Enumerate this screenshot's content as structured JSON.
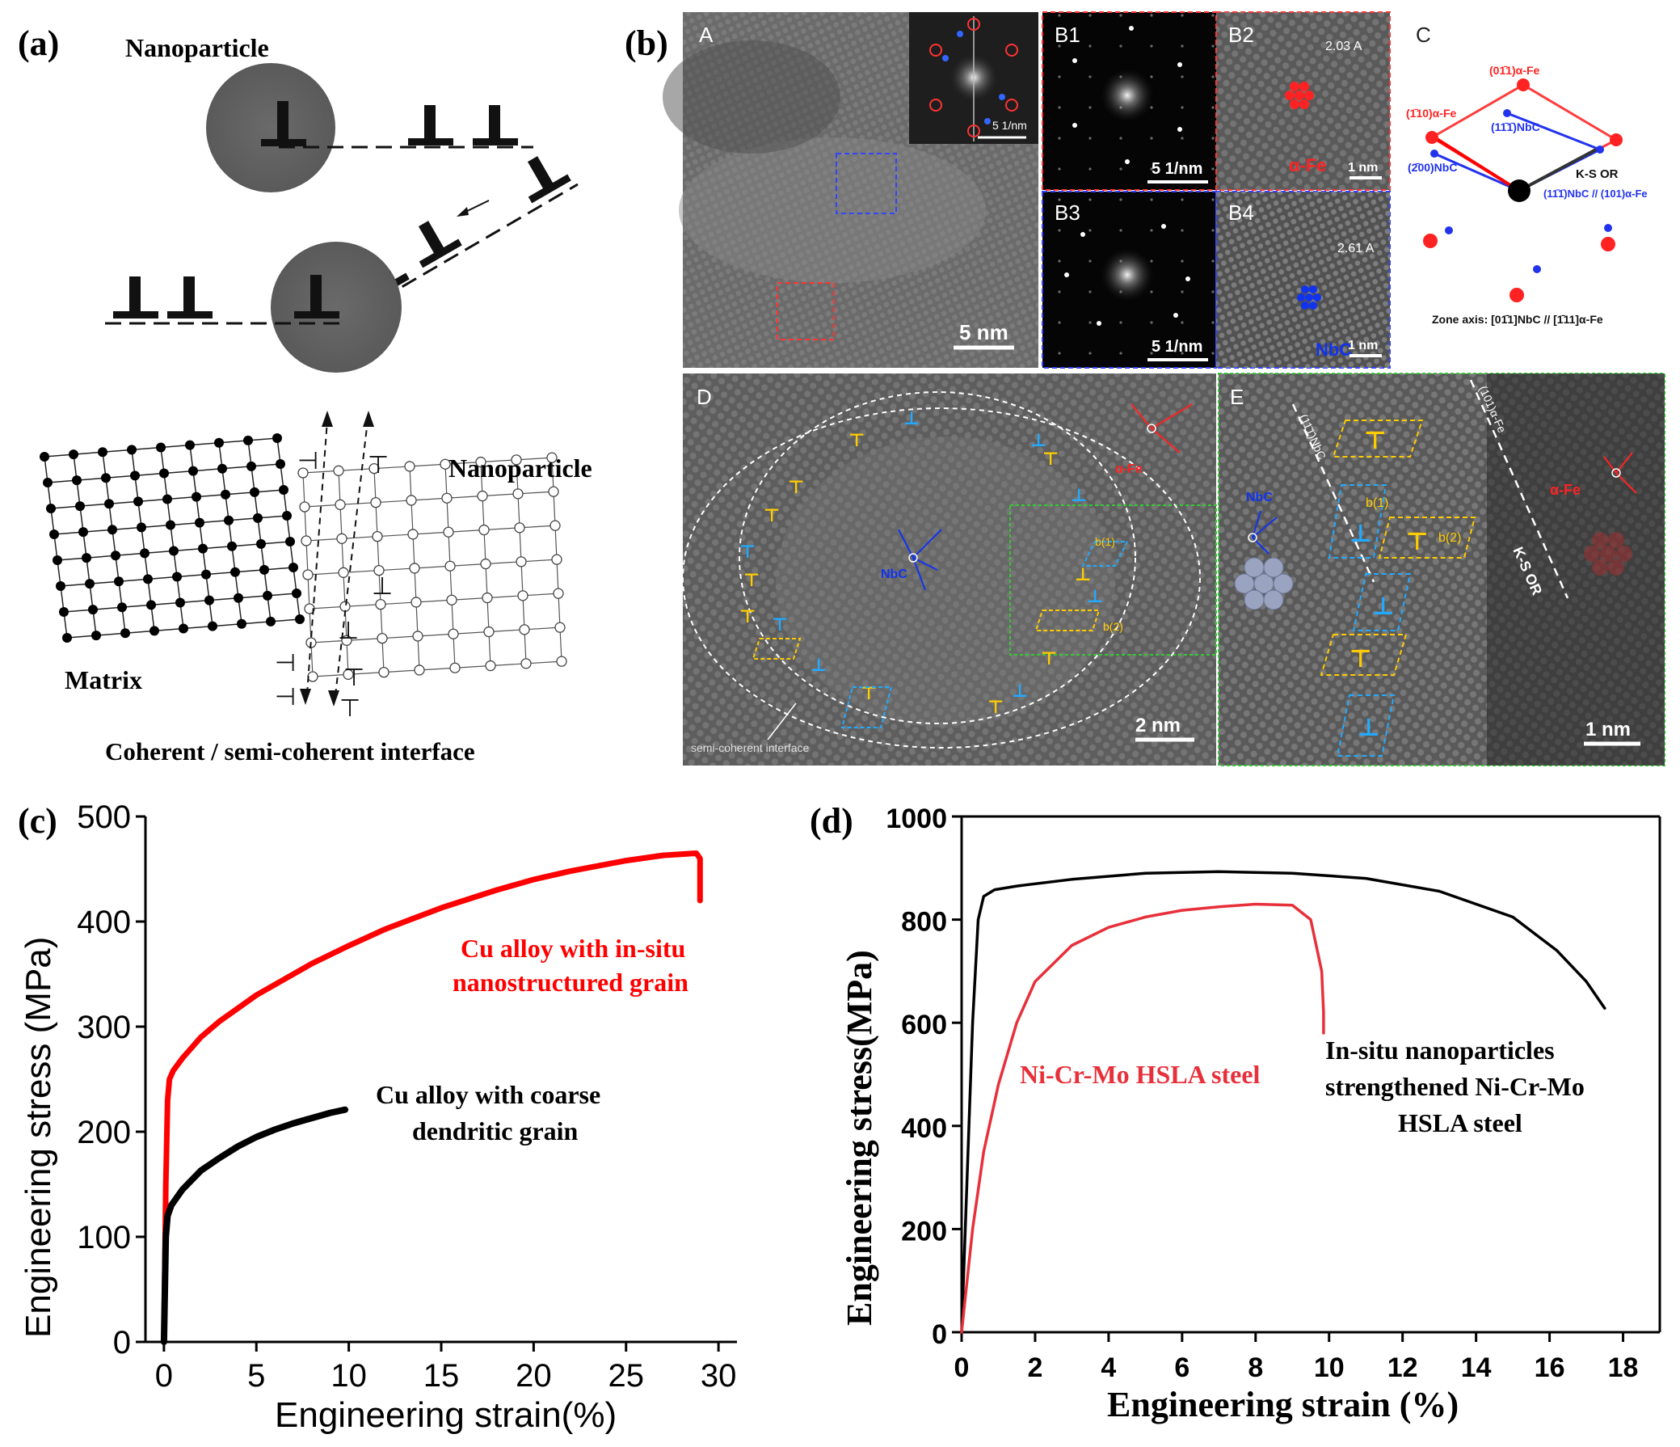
{
  "panel_a": {
    "label": "(a)",
    "nanoparticle_top": "Nanoparticle",
    "nanoparticle_right": "Nanoparticle",
    "matrix": "Matrix",
    "caption": "Coherent / semi-coherent interface"
  },
  "panel_b": {
    "label": "(b)",
    "sub_A": "A",
    "sub_B1": "B1",
    "sub_B2": "B2",
    "sub_B3": "B3",
    "sub_B4": "B4",
    "sub_C": "C",
    "sub_D": "D",
    "sub_E": "E",
    "scale_A": "5 nm",
    "scale_B1": "5 1/nm",
    "scale_B3": "5 1/nm",
    "scale_B2": "1 nm",
    "scale_B4": "1 nm",
    "scale_D": "2 nm",
    "scale_E": "1 nm",
    "inset_scale": "5 1/nm",
    "d_spacing_B2": "2.03 A",
    "d_spacing_B4": "2.61 A",
    "phase_fe": "α-Fe",
    "phase_nbc": "NbC",
    "c_plane_011_fe": "(01̄1)α-Fe",
    "c_plane_110_fe": "(1̄10)α-Fe",
    "c_plane_111_nbc": "(11̄1̄)NbC",
    "c_plane_200_nbc": "(2̄00)NbC",
    "c_ks": "K-S OR",
    "c_relation": "(11̄1̄)NbC // (101)α-Fe",
    "c_zone": "Zone axis: [01̄1]NbC // [1̄11]α-Fe",
    "d_interface": "semi-coherent interface",
    "d_b1": "b(1)",
    "d_b2": "b(2)",
    "e_plane_nbc": "(11̄1̄)NbC",
    "e_plane_fe": "(101)α-Fe",
    "e_ks": "K-S OR"
  },
  "panel_c": {
    "label": "(c)",
    "colors": {
      "nano": "#ff0000",
      "coarse": "#000000"
    },
    "legend_nano_1": "Cu alloy with in-situ",
    "legend_nano_2": "nanostructured grain",
    "legend_coarse_1": "Cu alloy with coarse",
    "legend_coarse_2": "dendritic grain",
    "chart_data": {
      "type": "line",
      "title": "",
      "xlabel": "Engineering strain(%)",
      "ylabel": "Engineering stress (MPa)",
      "xlim": [
        -1,
        31
      ],
      "ylim": [
        0,
        500
      ],
      "xticks": [
        0,
        5,
        10,
        15,
        20,
        25,
        30
      ],
      "yticks": [
        0,
        100,
        200,
        300,
        400,
        500
      ],
      "series": [
        {
          "name": "Cu alloy with in-situ nanostructured grain",
          "x": [
            0,
            0.1,
            0.2,
            0.3,
            0.5,
            1,
            2,
            3,
            5,
            8,
            10,
            12,
            15,
            18,
            20,
            22,
            25,
            27,
            28.8,
            29.0,
            29.0
          ],
          "y": [
            0,
            150,
            230,
            250,
            258,
            270,
            290,
            305,
            330,
            360,
            377,
            393,
            413,
            430,
            440,
            448,
            458,
            463,
            465,
            460,
            420
          ]
        },
        {
          "name": "Cu alloy with coarse dendritic grain",
          "x": [
            0,
            0.1,
            0.2,
            0.4,
            1,
            2,
            3,
            4,
            5,
            6,
            7,
            8,
            9,
            9.8
          ],
          "y": [
            0,
            100,
            120,
            130,
            145,
            163,
            175,
            186,
            195,
            202,
            208,
            213,
            218,
            221
          ]
        }
      ]
    }
  },
  "panel_d": {
    "label": "(d)",
    "colors": {
      "steel": "#e8303a",
      "nano_steel": "#000000"
    },
    "legend_steel": "Ni-Cr-Mo HSLA steel",
    "legend_nano_1": "In-situ nanoparticles",
    "legend_nano_2": "strengthened Ni-Cr-Mo",
    "legend_nano_3": "HSLA steel",
    "chart_data": {
      "type": "line",
      "title": "",
      "xlabel": "Engineering strain (%)",
      "ylabel": "Engineering stress(MPa)",
      "xlim": [
        0,
        19
      ],
      "ylim": [
        0,
        1000
      ],
      "xticks": [
        0,
        2,
        4,
        6,
        8,
        10,
        12,
        14,
        16,
        18
      ],
      "yticks": [
        0,
        200,
        400,
        600,
        800,
        1000
      ],
      "series": [
        {
          "name": "In-situ nanoparticles strengthened Ni-Cr-Mo HSLA steel",
          "x": [
            0,
            0.15,
            0.3,
            0.45,
            0.6,
            0.9,
            1.5,
            3,
            5,
            7,
            9,
            11,
            13,
            15,
            16.2,
            17,
            17.5
          ],
          "y": [
            0,
            300,
            600,
            800,
            845,
            858,
            865,
            878,
            890,
            893,
            890,
            880,
            855,
            805,
            740,
            680,
            628
          ]
        },
        {
          "name": "Ni-Cr-Mo HSLA steel",
          "x": [
            0,
            0.3,
            0.6,
            1,
            1.5,
            2,
            3,
            4,
            5,
            6,
            7,
            8,
            9,
            9.5,
            9.8,
            9.85,
            9.85
          ],
          "y": [
            0,
            200,
            350,
            480,
            600,
            680,
            750,
            785,
            805,
            818,
            825,
            830,
            828,
            800,
            700,
            620,
            580
          ]
        }
      ]
    }
  }
}
